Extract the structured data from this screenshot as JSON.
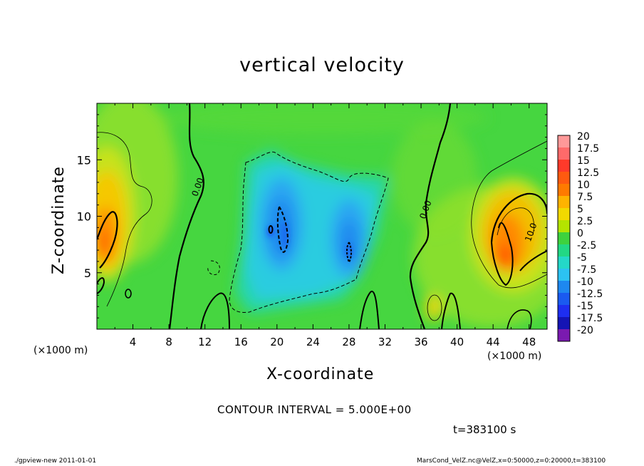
{
  "chart_data": {
    "type": "heatmap",
    "title": "vertical velocity",
    "xlabel": "X-coordinate",
    "ylabel": "Z-coordinate",
    "x_unit_label": "(×1000 m)",
    "x_ticks": [
      4,
      8,
      12,
      16,
      20,
      24,
      28,
      32,
      36,
      40,
      44,
      48
    ],
    "y_ticks": [
      5,
      10,
      15
    ],
    "xlim": [
      0,
      50
    ],
    "ylim": [
      0,
      20
    ],
    "colorbar": {
      "ticks": [
        20,
        17.5,
        15,
        12.5,
        10,
        7.5,
        5,
        2.5,
        0,
        -2.5,
        -5,
        -7.5,
        -10,
        -12.5,
        -15,
        -17.5,
        -20
      ],
      "colors": [
        "#ff9999",
        "#ff6a6a",
        "#ff3a2a",
        "#ff5a10",
        "#ff7a00",
        "#ffb300",
        "#f2d900",
        "#b4e400",
        "#3ed23e",
        "#22d884",
        "#24d8c8",
        "#2cc2f2",
        "#1e88f0",
        "#1a5af0",
        "#1e2ef0",
        "#1414b4",
        "#7a1ab0"
      ]
    },
    "contour_labels": [
      {
        "text": "0.00",
        "x": 11.5,
        "z": 12.5
      },
      {
        "text": "0.00",
        "x": 36.8,
        "z": 10.5
      },
      {
        "text": "10.0",
        "x": 48.5,
        "z": 8.5
      }
    ],
    "features": [
      {
        "name": "updraft-left",
        "x": 1.5,
        "z": 8,
        "peak": 12.5
      },
      {
        "name": "updraft-right",
        "x": 45,
        "z": 6.5,
        "peak": 12.5
      },
      {
        "name": "downdraft-center-left",
        "x": 20,
        "z": 9,
        "peak": -10
      },
      {
        "name": "downdraft-center-right",
        "x": 28,
        "z": 8,
        "peak": -10
      }
    ],
    "contour_interval": "CONTOUR INTERVAL = 5.000E+00",
    "time": "t=383100 s"
  },
  "footer": {
    "left": "./gpview-new   2011-01-01",
    "right": "MarsCond_VelZ.nc@VelZ,x=0:50000,z=0:20000,t=383100"
  }
}
